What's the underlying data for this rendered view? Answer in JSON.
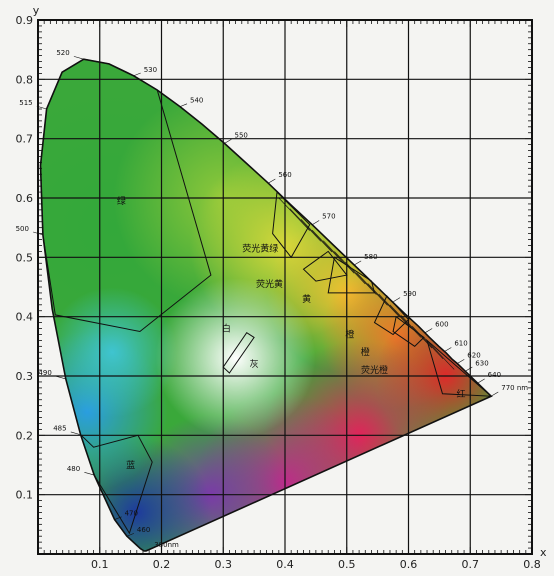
{
  "chart_data": {
    "type": "diagram",
    "xlabel": "x",
    "ylabel": "y",
    "xlim": [
      0.0,
      0.8
    ],
    "ylim": [
      0.0,
      0.9
    ],
    "x_ticks": [
      "0.1",
      "0.2",
      "0.3",
      "0.4",
      "0.5",
      "0.6",
      "0.7",
      "0.8"
    ],
    "y_ticks": [
      "0.1",
      "0.2",
      "0.3",
      "0.4",
      "0.5",
      "0.6",
      "0.7",
      "0.8",
      "0.9"
    ],
    "grid": true,
    "locus": [
      [
        0.175,
        0.005
      ],
      [
        0.172,
        0.005
      ],
      [
        0.166,
        0.009
      ],
      [
        0.144,
        0.03
      ],
      [
        0.124,
        0.058
      ],
      [
        0.091,
        0.133
      ],
      [
        0.069,
        0.201
      ],
      [
        0.045,
        0.295
      ],
      [
        0.023,
        0.413
      ],
      [
        0.008,
        0.538
      ],
      [
        0.004,
        0.655
      ],
      [
        0.014,
        0.75
      ],
      [
        0.039,
        0.812
      ],
      [
        0.074,
        0.834
      ],
      [
        0.115,
        0.826
      ],
      [
        0.155,
        0.806
      ],
      [
        0.193,
        0.782
      ],
      [
        0.23,
        0.754
      ],
      [
        0.266,
        0.724
      ],
      [
        0.302,
        0.692
      ],
      [
        0.337,
        0.659
      ],
      [
        0.373,
        0.625
      ],
      [
        0.408,
        0.59
      ],
      [
        0.444,
        0.555
      ],
      [
        0.479,
        0.52
      ],
      [
        0.512,
        0.487
      ],
      [
        0.542,
        0.457
      ],
      [
        0.569,
        0.43
      ],
      [
        0.594,
        0.405
      ],
      [
        0.616,
        0.384
      ],
      [
        0.634,
        0.365
      ],
      [
        0.649,
        0.35
      ],
      [
        0.661,
        0.339
      ],
      [
        0.671,
        0.328
      ],
      [
        0.679,
        0.321
      ],
      [
        0.685,
        0.315
      ],
      [
        0.69,
        0.31
      ],
      [
        0.734,
        0.266
      ]
    ],
    "wavelength_labels": [
      {
        "text": "380nm",
        "x": 0.172,
        "y": 0.005
      },
      {
        "text": "460",
        "x": 0.144,
        "y": 0.03
      },
      {
        "text": "470",
        "x": 0.124,
        "y": 0.058
      },
      {
        "text": "480",
        "x": 0.091,
        "y": 0.133
      },
      {
        "text": "485",
        "x": 0.069,
        "y": 0.201
      },
      {
        "text": "490",
        "x": 0.045,
        "y": 0.295
      },
      {
        "text": "500",
        "x": 0.008,
        "y": 0.538
      },
      {
        "text": "515",
        "x": 0.014,
        "y": 0.75
      },
      {
        "text": "520",
        "x": 0.074,
        "y": 0.834
      },
      {
        "text": "530",
        "x": 0.155,
        "y": 0.806
      },
      {
        "text": "540",
        "x": 0.23,
        "y": 0.754
      },
      {
        "text": "550",
        "x": 0.302,
        "y": 0.692
      },
      {
        "text": "560",
        "x": 0.373,
        "y": 0.625
      },
      {
        "text": "570",
        "x": 0.444,
        "y": 0.555
      },
      {
        "text": "580",
        "x": 0.512,
        "y": 0.487
      },
      {
        "text": "590",
        "x": 0.575,
        "y": 0.425
      },
      {
        "text": "600",
        "x": 0.627,
        "y": 0.373
      },
      {
        "text": "610",
        "x": 0.658,
        "y": 0.341
      },
      {
        "text": "620",
        "x": 0.679,
        "y": 0.321
      },
      {
        "text": "630",
        "x": 0.692,
        "y": 0.308
      },
      {
        "text": "640",
        "x": 0.712,
        "y": 0.288
      },
      {
        "text": "770 nm",
        "x": 0.734,
        "y": 0.266
      }
    ],
    "regions": [
      {
        "name": "绿",
        "label_x": 0.135,
        "label_y": 0.59,
        "polygon": [
          [
            0.008,
            0.538
          ],
          [
            0.004,
            0.655
          ],
          [
            0.014,
            0.75
          ],
          [
            0.039,
            0.812
          ],
          [
            0.074,
            0.834
          ],
          [
            0.115,
            0.826
          ],
          [
            0.155,
            0.806
          ],
          [
            0.193,
            0.782
          ],
          [
            0.28,
            0.47
          ],
          [
            0.165,
            0.375
          ],
          [
            0.028,
            0.403
          ]
        ]
      },
      {
        "name": "蓝",
        "label_x": 0.15,
        "label_y": 0.145,
        "polygon": [
          [
            0.091,
            0.133
          ],
          [
            0.069,
            0.201
          ],
          [
            0.09,
            0.18
          ],
          [
            0.162,
            0.2
          ],
          [
            0.185,
            0.155
          ],
          [
            0.148,
            0.035
          ]
        ]
      },
      {
        "name": "白",
        "label_x": 0.305,
        "label_y": 0.375,
        "polygon": [
          [
            0.3,
            0.315
          ],
          [
            0.31,
            0.305
          ],
          [
            0.35,
            0.365
          ],
          [
            0.338,
            0.373
          ]
        ]
      },
      {
        "name": "灰",
        "label_x": 0.35,
        "label_y": 0.315,
        "polygon": []
      },
      {
        "name": "荧光黄绿",
        "label_x": 0.36,
        "label_y": 0.51,
        "polygon": [
          [
            0.387,
            0.61
          ],
          [
            0.44,
            0.555
          ],
          [
            0.41,
            0.5
          ],
          [
            0.38,
            0.54
          ]
        ]
      },
      {
        "name": "荧光黄",
        "label_x": 0.375,
        "label_y": 0.45,
        "polygon": [
          [
            0.47,
            0.51
          ],
          [
            0.5,
            0.47
          ],
          [
            0.45,
            0.46
          ],
          [
            0.43,
            0.48
          ]
        ]
      },
      {
        "name": "黄",
        "label_x": 0.435,
        "label_y": 0.425,
        "polygon": [
          [
            0.48,
            0.5
          ],
          [
            0.54,
            0.46
          ],
          [
            0.545,
            0.44
          ],
          [
            0.47,
            0.44
          ]
        ]
      },
      {
        "name": "橙",
        "label_x": 0.505,
        "label_y": 0.365,
        "polygon": [
          [
            0.565,
            0.435
          ],
          [
            0.6,
            0.395
          ],
          [
            0.575,
            0.37
          ],
          [
            0.545,
            0.39
          ]
        ]
      },
      {
        "name": "荧光橙",
        "label_x": 0.545,
        "label_y": 0.305,
        "polygon": [
          [
            0.58,
            0.4
          ],
          [
            0.625,
            0.365
          ],
          [
            0.61,
            0.35
          ],
          [
            0.575,
            0.375
          ]
        ]
      },
      {
        "name": "红",
        "label_x": 0.685,
        "label_y": 0.265,
        "polygon": [
          [
            0.63,
            0.36
          ],
          [
            0.734,
            0.266
          ],
          [
            0.655,
            0.27
          ]
        ]
      }
    ],
    "extra_labels": [
      {
        "text": "橙",
        "x": 0.53,
        "y": 0.335
      }
    ]
  }
}
